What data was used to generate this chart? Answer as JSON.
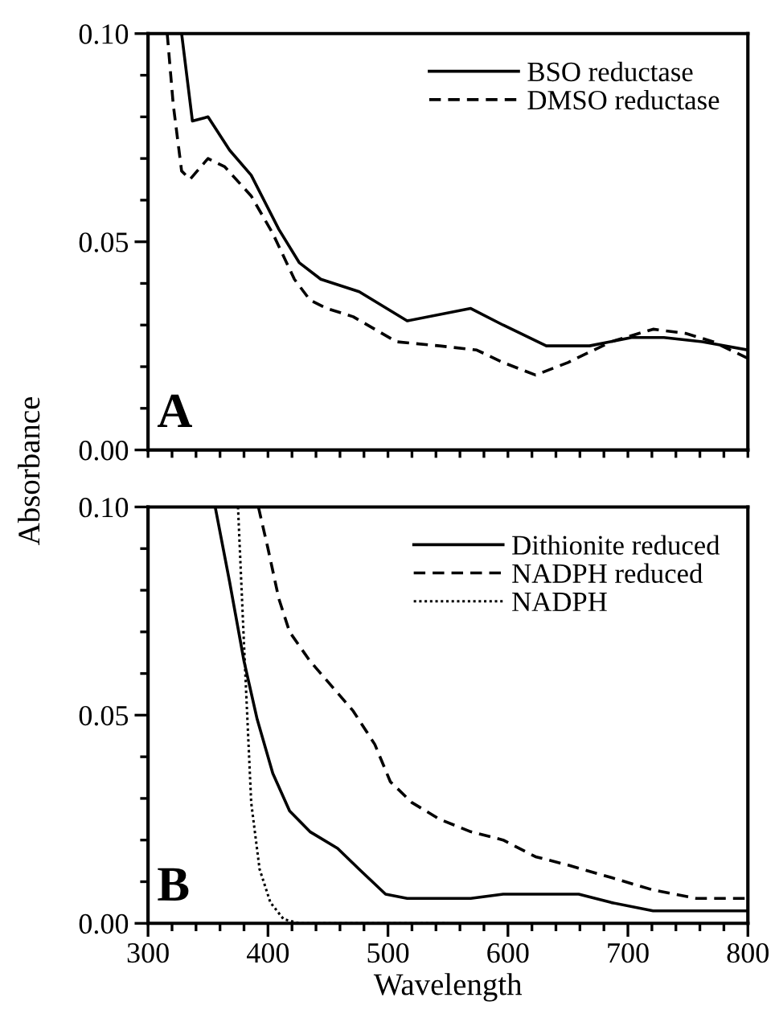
{
  "chart_data": [
    {
      "type": "line",
      "ylabel": "Absorbance",
      "annotations": [
        "A"
      ],
      "legend": "top right",
      "tick_labels": "y",
      "xlim": [
        300,
        800
      ],
      "ylim": [
        0.0,
        0.1
      ],
      "xticks": [
        {
          "value": 300,
          "label": null
        },
        {
          "value": 320,
          "label": null
        },
        {
          "value": 340,
          "label": null
        },
        {
          "value": 360,
          "label": null
        },
        {
          "value": 380,
          "label": null
        },
        {
          "value": 400,
          "label": null
        },
        {
          "value": 420,
          "label": null
        },
        {
          "value": 440,
          "label": null
        },
        {
          "value": 460,
          "label": null
        },
        {
          "value": 480,
          "label": null
        },
        {
          "value": 500,
          "label": null
        },
        {
          "value": 520,
          "label": null
        },
        {
          "value": 540,
          "label": null
        },
        {
          "value": 560,
          "label": null
        },
        {
          "value": 580,
          "label": null
        },
        {
          "value": 600,
          "label": null
        },
        {
          "value": 620,
          "label": null
        },
        {
          "value": 640,
          "label": null
        },
        {
          "value": 660,
          "label": null
        },
        {
          "value": 680,
          "label": null
        },
        {
          "value": 700,
          "label": null
        },
        {
          "value": 720,
          "label": null
        },
        {
          "value": 740,
          "label": null
        },
        {
          "value": 760,
          "label": null
        },
        {
          "value": 780,
          "label": null
        },
        {
          "value": 800,
          "label": null
        }
      ],
      "yticks": [
        {
          "value": 0.0,
          "label": "0.00"
        },
        {
          "value": 0.01,
          "label": null
        },
        {
          "value": 0.02,
          "label": null
        },
        {
          "value": 0.03,
          "label": null
        },
        {
          "value": 0.04,
          "label": null
        },
        {
          "value": 0.05,
          "label": "0.05"
        },
        {
          "value": 0.06,
          "label": null
        },
        {
          "value": 0.07,
          "label": null
        },
        {
          "value": 0.08,
          "label": null
        },
        {
          "value": 0.09,
          "label": null
        },
        {
          "value": 0.1,
          "label": "0.10"
        }
      ],
      "series": [
        {
          "name": "BSO reductase",
          "color": "#000000",
          "line_style": "solid",
          "x": [
            328,
            337,
            350,
            368,
            386,
            409,
            426,
            444,
            476,
            516,
            569,
            596,
            632,
            668,
            703,
            730,
            762,
            800
          ],
          "values": [
            0.1,
            0.079,
            0.08,
            0.072,
            0.066,
            0.053,
            0.045,
            0.041,
            0.038,
            0.031,
            0.034,
            0.03,
            0.025,
            0.025,
            0.027,
            0.027,
            0.026,
            0.024
          ]
        },
        {
          "name": "DMSO reductase",
          "color": "#000000",
          "line_style": "dashed",
          "x": [
            316,
            321,
            328,
            335,
            350,
            364,
            386,
            404,
            422,
            435,
            449,
            471,
            507,
            543,
            574,
            596,
            623,
            650,
            686,
            721,
            748,
            771,
            800
          ],
          "values": [
            0.1,
            0.083,
            0.067,
            0.065,
            0.07,
            0.068,
            0.061,
            0.052,
            0.041,
            0.036,
            0.034,
            0.032,
            0.026,
            0.025,
            0.024,
            0.021,
            0.018,
            0.021,
            0.026,
            0.029,
            0.028,
            0.026,
            0.022
          ]
        }
      ]
    },
    {
      "type": "line",
      "xlabel": "Wavelength",
      "annotations": [
        "B"
      ],
      "legend": "top right",
      "xlim": [
        300,
        800
      ],
      "ylim": [
        0.0,
        0.1
      ],
      "xticks": [
        300,
        {
          "value": 320,
          "label": null
        },
        {
          "value": 340,
          "label": null
        },
        {
          "value": 360,
          "label": null
        },
        {
          "value": 380,
          "label": null
        },
        400,
        {
          "value": 420,
          "label": null
        },
        {
          "value": 440,
          "label": null
        },
        {
          "value": 460,
          "label": null
        },
        {
          "value": 480,
          "label": null
        },
        500,
        {
          "value": 520,
          "label": null
        },
        {
          "value": 540,
          "label": null
        },
        {
          "value": 560,
          "label": null
        },
        {
          "value": 580,
          "label": null
        },
        600,
        {
          "value": 620,
          "label": null
        },
        {
          "value": 640,
          "label": null
        },
        {
          "value": 660,
          "label": null
        },
        {
          "value": 680,
          "label": null
        },
        700,
        {
          "value": 720,
          "label": null
        },
        {
          "value": 740,
          "label": null
        },
        {
          "value": 760,
          "label": null
        },
        {
          "value": 780,
          "label": null
        },
        800
      ],
      "yticks": [
        {
          "value": 0.0,
          "label": "0.00"
        },
        {
          "value": 0.01,
          "label": null
        },
        {
          "value": 0.02,
          "label": null
        },
        {
          "value": 0.03,
          "label": null
        },
        {
          "value": 0.04,
          "label": null
        },
        {
          "value": 0.05,
          "label": "0.05"
        },
        {
          "value": 0.06,
          "label": null
        },
        {
          "value": 0.07,
          "label": null
        },
        {
          "value": 0.08,
          "label": null
        },
        {
          "value": 0.09,
          "label": null
        },
        {
          "value": 0.1,
          "label": "0.10"
        }
      ],
      "series": [
        {
          "name": "Dithionite reduced",
          "color": "#000000",
          "line_style": "solid",
          "x": [
            356,
            368,
            380,
            391,
            404,
            418,
            435,
            458,
            476,
            498,
            516,
            569,
            596,
            632,
            659,
            686,
            721,
            800
          ],
          "values": [
            0.1,
            0.082,
            0.063,
            0.049,
            0.036,
            0.027,
            0.022,
            0.018,
            0.013,
            0.007,
            0.006,
            0.006,
            0.007,
            0.007,
            0.007,
            0.005,
            0.003,
            0.003
          ]
        },
        {
          "name": "NADPH reduced",
          "color": "#000000",
          "line_style": "dashed",
          "x": [
            392,
            400,
            409,
            418,
            435,
            453,
            471,
            489,
            502,
            520,
            543,
            569,
            596,
            623,
            650,
            686,
            721,
            757,
            800
          ],
          "values": [
            0.1,
            0.09,
            0.078,
            0.07,
            0.063,
            0.057,
            0.051,
            0.043,
            0.034,
            0.029,
            0.025,
            0.022,
            0.02,
            0.016,
            0.014,
            0.011,
            0.008,
            0.006,
            0.006
          ]
        },
        {
          "name": "NADPH",
          "color": "#000000",
          "line_style": "dotted",
          "x": [
            375,
            380,
            386,
            393,
            402,
            413,
            426,
            550
          ],
          "values": [
            0.1,
            0.067,
            0.029,
            0.013,
            0.005,
            0.001,
            0.0,
            0.0
          ]
        }
      ]
    }
  ]
}
